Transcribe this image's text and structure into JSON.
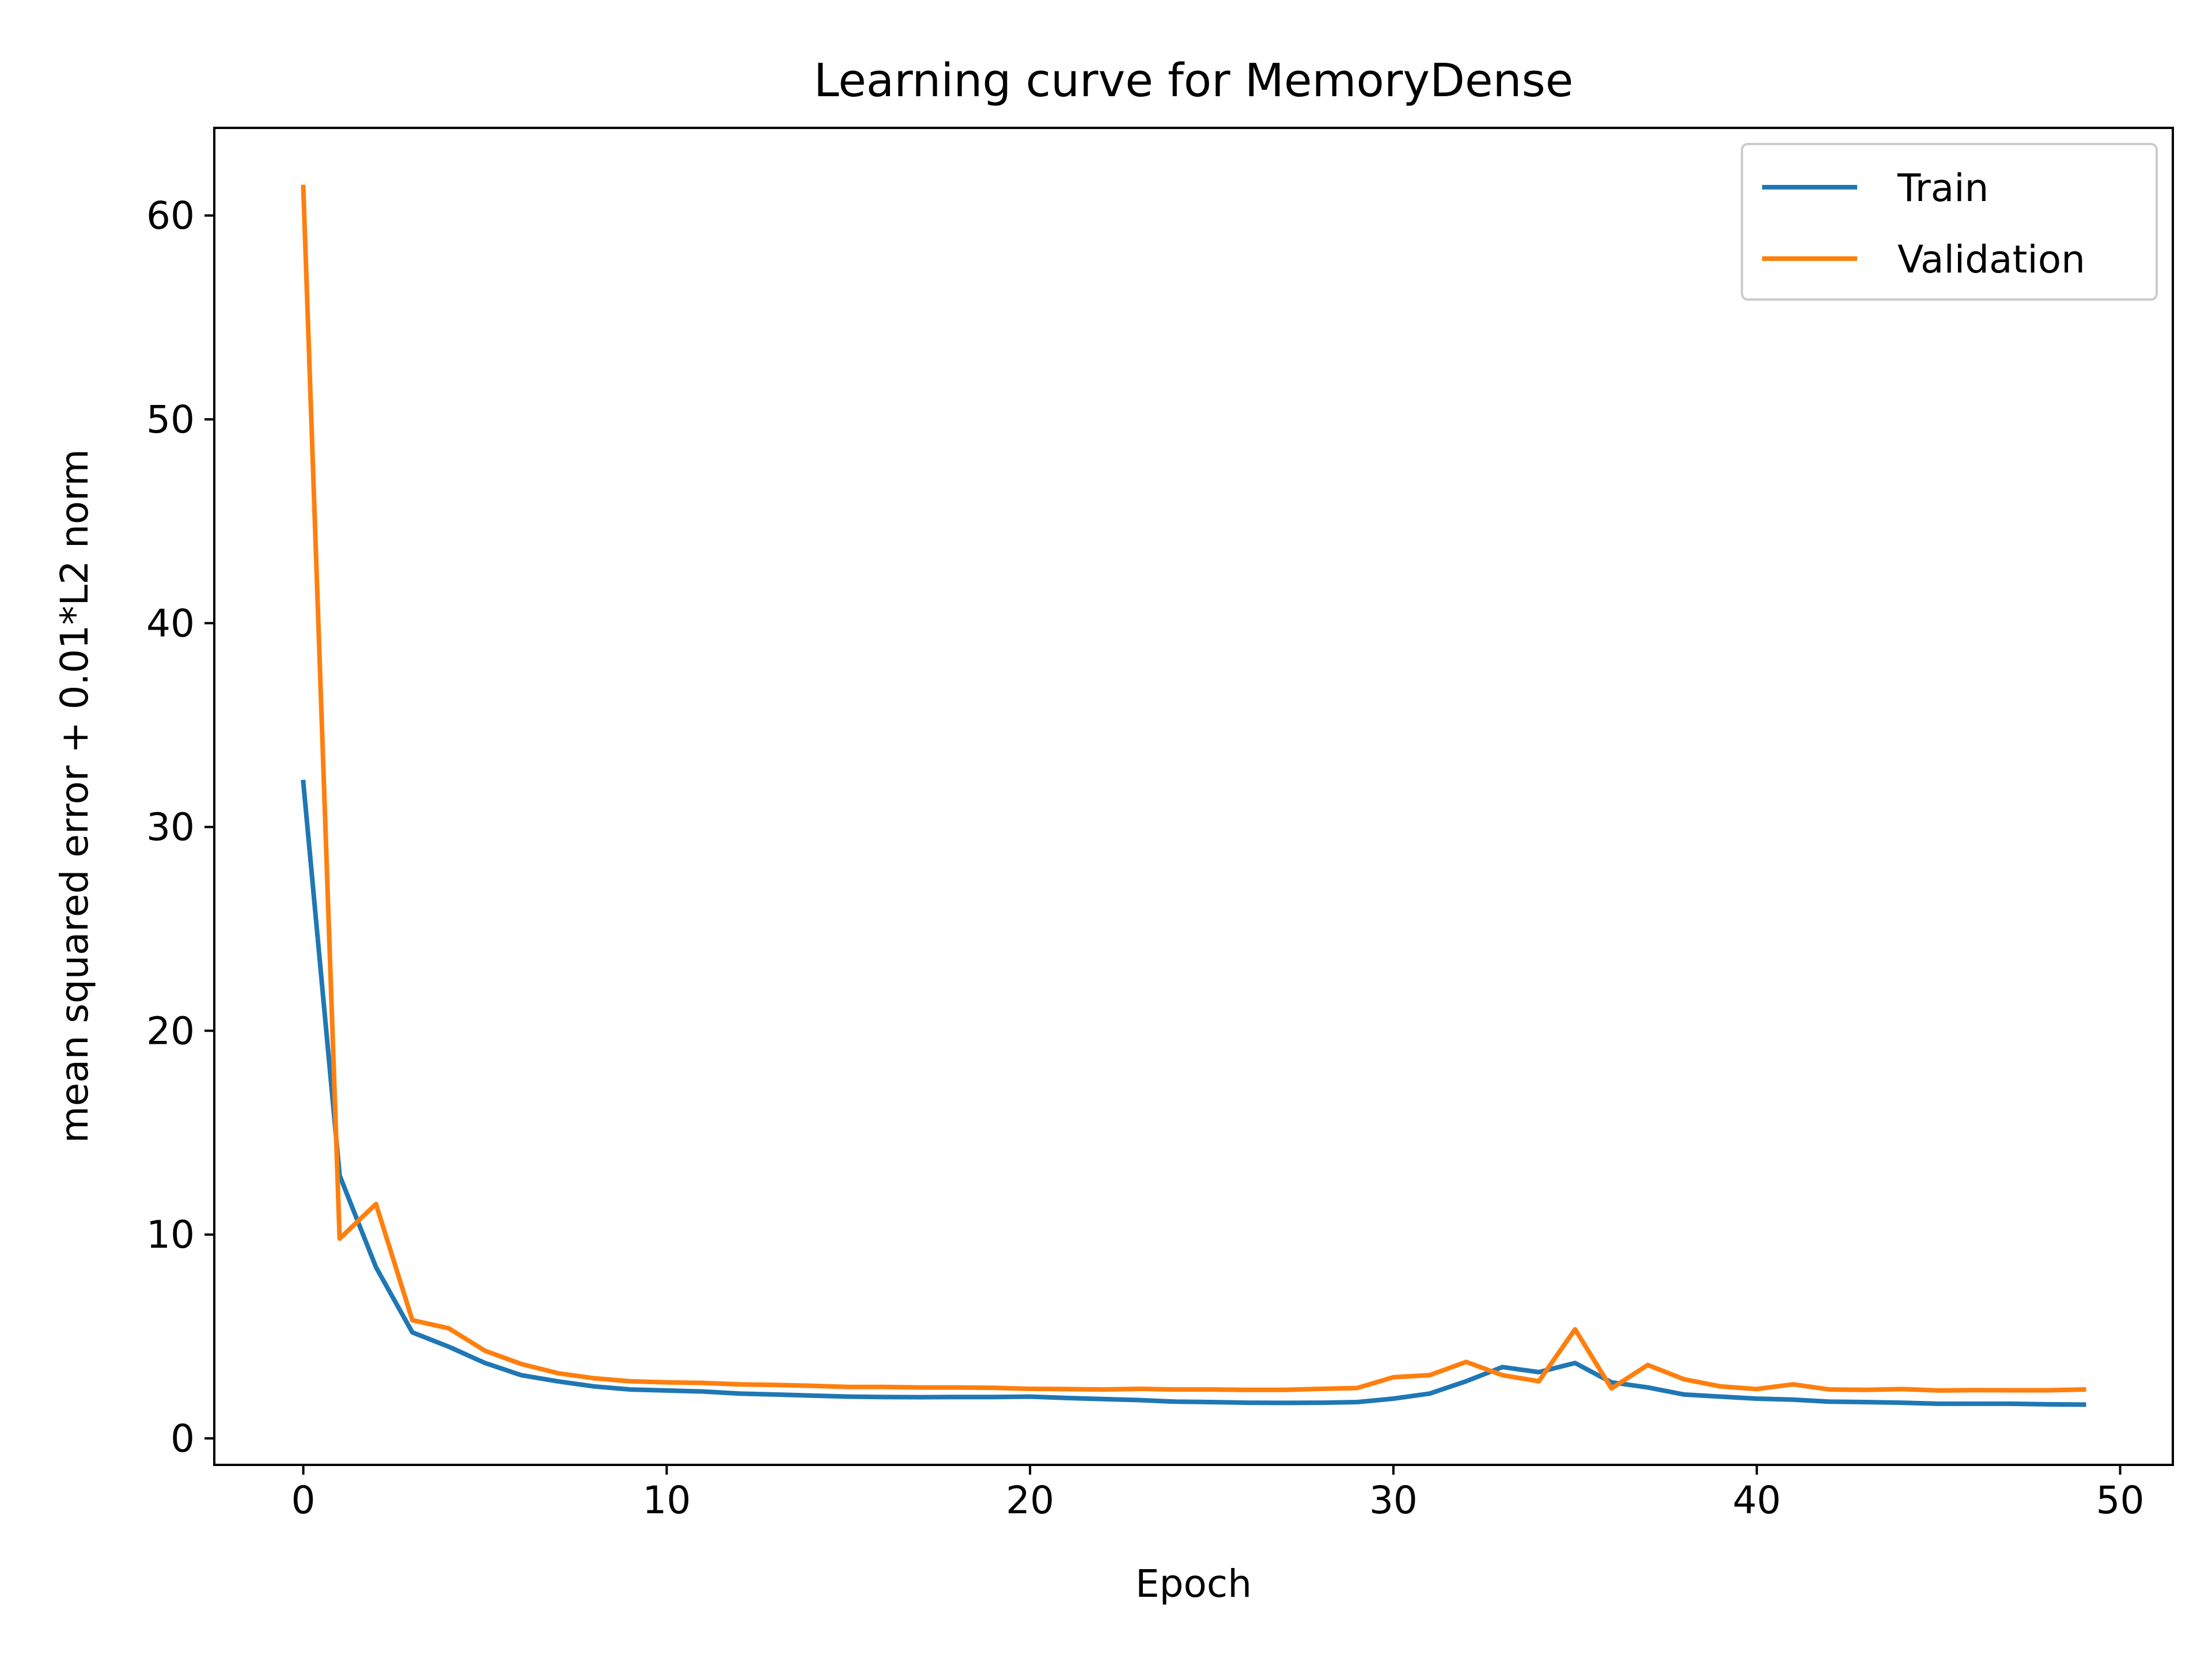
{
  "chart_data": {
    "type": "line",
    "title": "Learning curve for MemoryDense",
    "xlabel": "Epoch",
    "ylabel": "mean squared error + 0.01*L2 norm",
    "xlim": [
      -2.45,
      51.45
    ],
    "ylim": [
      -1.3,
      64.3
    ],
    "xticks": [
      0,
      10,
      20,
      30,
      40,
      50
    ],
    "yticks": [
      0,
      10,
      20,
      30,
      40,
      50,
      60
    ],
    "grid": false,
    "legend": "top-right",
    "x": [
      0,
      1,
      2,
      3,
      4,
      5,
      6,
      7,
      8,
      9,
      10,
      11,
      12,
      13,
      14,
      15,
      16,
      17,
      18,
      19,
      20,
      21,
      22,
      23,
      24,
      25,
      26,
      27,
      28,
      29,
      30,
      31,
      32,
      33,
      34,
      35,
      36,
      37,
      38,
      39,
      40,
      41,
      42,
      43,
      44,
      45,
      46,
      47,
      48,
      49
    ],
    "series": [
      {
        "name": "Train",
        "color": "#1f77b4",
        "values": [
          32.2,
          12.9,
          8.4,
          5.2,
          4.5,
          3.7,
          3.1,
          2.8,
          2.55,
          2.4,
          2.35,
          2.3,
          2.2,
          2.15,
          2.1,
          2.05,
          2.03,
          2.02,
          2.03,
          2.03,
          2.05,
          1.98,
          1.93,
          1.88,
          1.8,
          1.78,
          1.75,
          1.74,
          1.75,
          1.78,
          1.95,
          2.2,
          2.8,
          3.5,
          3.25,
          3.7,
          2.75,
          2.5,
          2.15,
          2.05,
          1.95,
          1.9,
          1.8,
          1.78,
          1.75,
          1.7,
          1.7,
          1.7,
          1.67,
          1.66
        ]
      },
      {
        "name": "Validation",
        "color": "#ff7f0e",
        "values": [
          61.4,
          9.8,
          11.5,
          5.8,
          5.4,
          4.3,
          3.65,
          3.2,
          2.95,
          2.8,
          2.75,
          2.72,
          2.65,
          2.62,
          2.58,
          2.52,
          2.52,
          2.5,
          2.5,
          2.48,
          2.43,
          2.42,
          2.4,
          2.43,
          2.4,
          2.4,
          2.38,
          2.38,
          2.43,
          2.47,
          3.0,
          3.1,
          3.75,
          3.1,
          2.8,
          5.35,
          2.45,
          3.6,
          2.9,
          2.55,
          2.42,
          2.65,
          2.4,
          2.38,
          2.42,
          2.35,
          2.37,
          2.36,
          2.36,
          2.4
        ]
      }
    ]
  }
}
